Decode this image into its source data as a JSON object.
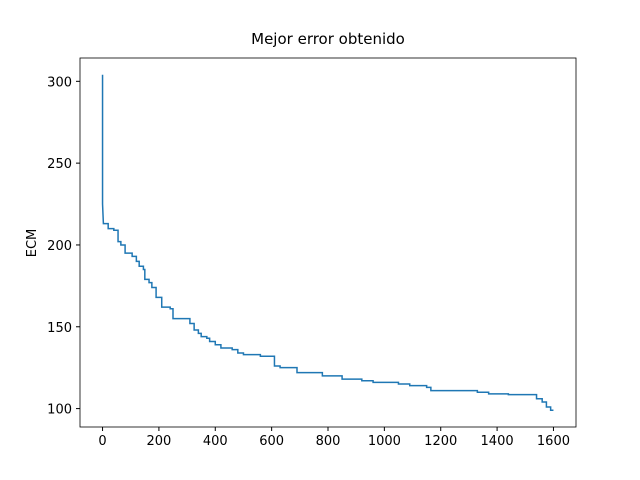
{
  "chart_data": {
    "type": "line",
    "title": "Mejor error obtenido",
    "y_label": "ECM",
    "x": [
      0,
      0,
      3,
      20,
      20,
      40,
      40,
      55,
      55,
      65,
      65,
      80,
      80,
      105,
      105,
      120,
      120,
      130,
      130,
      145,
      145,
      150,
      150,
      165,
      165,
      175,
      175,
      190,
      190,
      210,
      210,
      240,
      240,
      250,
      250,
      310,
      310,
      325,
      325,
      340,
      340,
      350,
      350,
      370,
      370,
      380,
      380,
      400,
      400,
      420,
      420,
      460,
      460,
      480,
      480,
      500,
      500,
      560,
      560,
      610,
      610,
      630,
      630,
      690,
      690,
      780,
      780,
      850,
      850,
      920,
      920,
      960,
      960,
      1050,
      1050,
      1090,
      1090,
      1150,
      1150,
      1165,
      1165,
      1330,
      1330,
      1370,
      1370,
      1440,
      1440,
      1540,
      1540,
      1560,
      1560,
      1575,
      1575,
      1590,
      1590,
      1600
    ],
    "series": [
      {
        "color": "#1f77b4",
        "values": [
          304,
          225,
          213,
          213,
          210,
          210,
          209,
          209,
          202,
          202,
          200,
          200,
          195,
          195,
          193,
          193,
          190,
          190,
          187,
          187,
          185,
          185,
          179,
          179,
          177,
          177,
          174,
          174,
          168,
          168,
          162,
          162,
          161,
          161,
          155,
          155,
          152,
          152,
          148,
          148,
          146,
          146,
          144,
          144,
          143,
          143,
          141,
          141,
          139,
          139,
          137,
          137,
          136,
          136,
          134,
          134,
          133,
          133,
          132,
          132,
          126,
          126,
          125,
          125,
          122,
          122,
          120,
          120,
          118,
          118,
          117,
          117,
          116,
          116,
          115,
          115,
          114,
          114,
          113,
          113,
          111,
          111,
          110,
          110,
          109,
          109,
          108.5,
          108.5,
          106,
          106,
          104,
          104,
          101,
          101,
          99,
          99
        ]
      }
    ],
    "xlim": [
      -80,
      1680
    ],
    "ylim": [
      88.75,
      314.25
    ],
    "xticks": [
      0,
      200,
      400,
      600,
      800,
      1000,
      1200,
      1400,
      1600
    ],
    "yticks": [
      100,
      150,
      200,
      250,
      300
    ]
  }
}
